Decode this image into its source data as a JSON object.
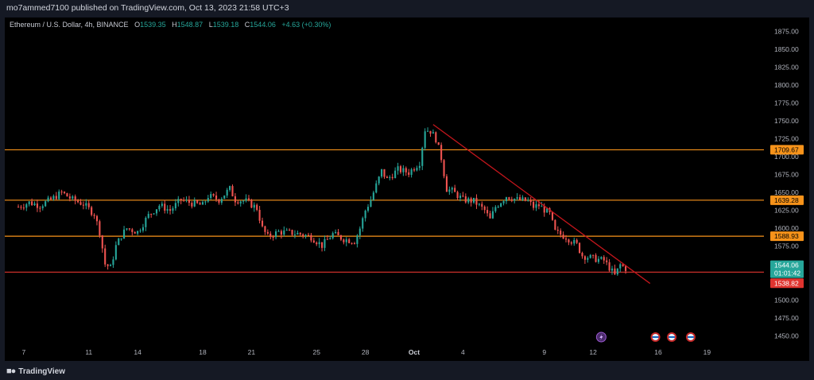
{
  "header": {
    "published": "mo7ammed7100 published on TradingView.com, Oct 13, 2023 21:58 UTC+3"
  },
  "legend": {
    "symbol": "Ethereum / U.S. Dollar, 4h, BINANCE",
    "open_label": "O",
    "open": "1539.35",
    "high_label": "H",
    "high": "1548.87",
    "low_label": "L",
    "low": "1539.18",
    "close_label": "C",
    "close": "1544.06",
    "change": "+4.63 (+0.30%)"
  },
  "footer": {
    "brand": "TradingView"
  },
  "colors": {
    "up": "#26a69a",
    "down": "#ef5350",
    "level": "#f7931a",
    "support": "#e0342f",
    "trend": "#c4161c",
    "background": "#000000"
  },
  "chart_data": {
    "type": "candlestick",
    "ylim": [
      1437,
      1890
    ],
    "y_ticks": [
      "1875.00",
      "1850.00",
      "1825.00",
      "1800.00",
      "1775.00",
      "1750.00",
      "1725.00",
      "1700.00",
      "1675.00",
      "1650.00",
      "1625.00",
      "1600.00",
      "1575.00",
      "1550.00",
      "1525.00",
      "1500.00",
      "1475.00",
      "1450.00"
    ],
    "x_ticks": [
      {
        "label": "7",
        "t": 2
      },
      {
        "label": "11",
        "t": 26
      },
      {
        "label": "14",
        "t": 44
      },
      {
        "label": "18",
        "t": 68
      },
      {
        "label": "21",
        "t": 86
      },
      {
        "label": "25",
        "t": 110
      },
      {
        "label": "28",
        "t": 128
      },
      {
        "label": "Oct",
        "t": 146
      },
      {
        "label": "4",
        "t": 164
      },
      {
        "label": "9",
        "t": 194
      },
      {
        "label": "12",
        "t": 212
      },
      {
        "label": "16",
        "t": 236
      },
      {
        "label": "19",
        "t": 254
      }
    ],
    "t_range": [
      -5,
      275
    ],
    "levels": [
      {
        "price": 1709.67,
        "label": "1709.67"
      },
      {
        "price": 1639.28,
        "label": "1639.28"
      },
      {
        "price": 1588.93,
        "label": "1588.93"
      }
    ],
    "support": {
      "price": 1538.82,
      "label": "1538.82"
    },
    "current": {
      "price": 1544.06,
      "label": "1544.06",
      "countdown": "01:01:42"
    },
    "trendline": {
      "t1": 153,
      "p1": 1745,
      "t2": 233,
      "p2": 1523
    },
    "anchors": [
      [
        0,
        1630
      ],
      [
        4,
        1636
      ],
      [
        8,
        1632
      ],
      [
        12,
        1640
      ],
      [
        16,
        1650
      ],
      [
        20,
        1640
      ],
      [
        24,
        1634
      ],
      [
        28,
        1620
      ],
      [
        30,
        1595
      ],
      [
        32,
        1550
      ],
      [
        34,
        1545
      ],
      [
        36,
        1575
      ],
      [
        38,
        1590
      ],
      [
        40,
        1600
      ],
      [
        44,
        1595
      ],
      [
        48,
        1618
      ],
      [
        52,
        1632
      ],
      [
        56,
        1625
      ],
      [
        60,
        1640
      ],
      [
        64,
        1635
      ],
      [
        68,
        1632
      ],
      [
        70,
        1645
      ],
      [
        74,
        1640
      ],
      [
        78,
        1655
      ],
      [
        80,
        1640
      ],
      [
        84,
        1638
      ],
      [
        88,
        1628
      ],
      [
        90,
        1600
      ],
      [
        92,
        1588
      ],
      [
        96,
        1595
      ],
      [
        100,
        1594
      ],
      [
        104,
        1592
      ],
      [
        108,
        1588
      ],
      [
        112,
        1576
      ],
      [
        116,
        1592
      ],
      [
        120,
        1585
      ],
      [
        124,
        1582
      ],
      [
        126,
        1600
      ],
      [
        128,
        1625
      ],
      [
        130,
        1640
      ],
      [
        134,
        1680
      ],
      [
        136,
        1668
      ],
      [
        140,
        1682
      ],
      [
        144,
        1678
      ],
      [
        148,
        1692
      ],
      [
        150,
        1738
      ],
      [
        152,
        1736
      ],
      [
        154,
        1725
      ],
      [
        156,
        1698
      ],
      [
        158,
        1655
      ],
      [
        160,
        1652
      ],
      [
        164,
        1640
      ],
      [
        168,
        1638
      ],
      [
        172,
        1625
      ],
      [
        174,
        1612
      ],
      [
        176,
        1630
      ],
      [
        180,
        1645
      ],
      [
        184,
        1640
      ],
      [
        188,
        1638
      ],
      [
        190,
        1630
      ],
      [
        192,
        1632
      ],
      [
        196,
        1620
      ],
      [
        198,
        1595
      ],
      [
        202,
        1588
      ],
      [
        206,
        1577
      ],
      [
        208,
        1562
      ],
      [
        212,
        1558
      ],
      [
        216,
        1555
      ],
      [
        218,
        1545
      ],
      [
        220,
        1534
      ],
      [
        222,
        1549
      ],
      [
        224,
        1544
      ]
    ],
    "annotations": {
      "lightning": 215,
      "flags": [
        235,
        241,
        248
      ]
    }
  }
}
